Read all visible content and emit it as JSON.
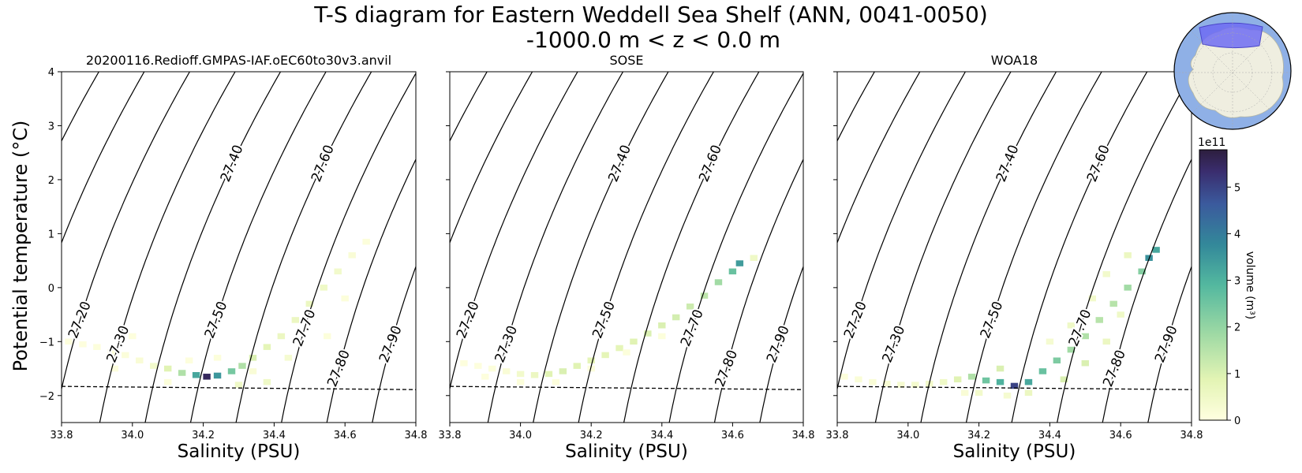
{
  "figure": {
    "title_line1": "T-S diagram for Eastern Weddell Sea Shelf (ANN, 0041-0050)",
    "title_line2": "-1000.0 m < z < 0.0 m",
    "ylabel": "Potential temperature (°C)",
    "colorbar_label": "volume (m³)",
    "colorbar_exponent": "1e11"
  },
  "chart_data": [
    {
      "type": "heatmap",
      "title": "20200116.Redioff.GMPAS-IAF.oEC60to30v3.anvil",
      "xlabel": "Salinity (PSU)",
      "ylabel": "Potential temperature (°C)",
      "xlim": [
        33.8,
        34.8
      ],
      "ylim": [
        -2.5,
        4
      ],
      "x_ticks": [
        "33.8",
        "34.0",
        "34.2",
        "34.4",
        "34.6",
        "34.8"
      ],
      "y_ticks": [
        "−2",
        "−1",
        "0",
        "1",
        "2",
        "3",
        "4"
      ],
      "freezing_line": [
        [
          33.8,
          -1.83
        ],
        [
          34.8,
          -1.89
        ]
      ],
      "density_contours": [
        "27.00",
        "27.10",
        "27.20",
        "27.30",
        "27.40",
        "27.50",
        "27.60",
        "27.70",
        "27.80",
        "27.90",
        "28.00"
      ],
      "volume_cells": [
        [
          33.82,
          -1.0,
          0.05
        ],
        [
          33.86,
          -1.05,
          0.05
        ],
        [
          33.9,
          -1.1,
          0.08
        ],
        [
          33.94,
          -1.2,
          0.1
        ],
        [
          33.98,
          -1.25,
          0.12
        ],
        [
          34.02,
          -1.35,
          0.2
        ],
        [
          34.06,
          -1.45,
          0.4
        ],
        [
          34.1,
          -1.5,
          0.9
        ],
        [
          34.14,
          -1.58,
          1.6
        ],
        [
          34.18,
          -1.62,
          3.2
        ],
        [
          34.21,
          -1.65,
          5.5
        ],
        [
          34.24,
          -1.63,
          3.5
        ],
        [
          34.28,
          -1.55,
          2.4
        ],
        [
          34.31,
          -1.45,
          1.6
        ],
        [
          34.34,
          -1.3,
          1.0
        ],
        [
          34.38,
          -1.1,
          0.8
        ],
        [
          34.42,
          -0.9,
          0.6
        ],
        [
          34.46,
          -0.6,
          0.6
        ],
        [
          34.5,
          -0.3,
          0.6
        ],
        [
          34.54,
          0.0,
          0.5
        ],
        [
          34.58,
          0.3,
          0.4
        ],
        [
          34.62,
          0.6,
          0.2
        ],
        [
          34.66,
          0.85,
          0.1
        ],
        [
          34.3,
          -1.8,
          0.5
        ],
        [
          34.38,
          -1.75,
          0.5
        ],
        [
          34.1,
          -1.75,
          0.1
        ],
        [
          33.95,
          -1.5,
          0.05
        ],
        [
          34.0,
          -0.9,
          0.05
        ],
        [
          34.16,
          -1.35,
          0.05
        ],
        [
          34.24,
          -1.3,
          0.1
        ],
        [
          34.34,
          -1.55,
          0.2
        ],
        [
          34.44,
          -1.3,
          0.3
        ],
        [
          34.55,
          -0.9,
          0.1
        ],
        [
          34.6,
          -0.2,
          0.1
        ]
      ]
    },
    {
      "type": "heatmap",
      "title": "SOSE",
      "xlabel": "Salinity (PSU)",
      "xlim": [
        33.8,
        34.8
      ],
      "ylim": [
        -2.5,
        4
      ],
      "x_ticks": [
        "33.8",
        "34.0",
        "34.2",
        "34.4",
        "34.6",
        "34.8"
      ],
      "freezing_line": [
        [
          33.8,
          -1.83
        ],
        [
          34.8,
          -1.89
        ]
      ],
      "density_contours": [
        "27.00",
        "27.10",
        "27.20",
        "27.30",
        "27.40",
        "27.50",
        "27.60",
        "27.70",
        "27.80",
        "27.90",
        "28.00"
      ],
      "volume_cells": [
        [
          33.84,
          -1.4,
          0.05
        ],
        [
          33.88,
          -1.45,
          0.05
        ],
        [
          33.92,
          -1.5,
          0.1
        ],
        [
          33.96,
          -1.55,
          0.2
        ],
        [
          34.0,
          -1.6,
          0.4
        ],
        [
          34.04,
          -1.62,
          0.6
        ],
        [
          34.08,
          -1.6,
          0.9
        ],
        [
          34.12,
          -1.55,
          1.0
        ],
        [
          34.16,
          -1.45,
          0.9
        ],
        [
          34.2,
          -1.35,
          0.8
        ],
        [
          34.24,
          -1.25,
          0.8
        ],
        [
          34.28,
          -1.12,
          0.8
        ],
        [
          34.32,
          -1.0,
          0.9
        ],
        [
          34.36,
          -0.85,
          1.0
        ],
        [
          34.4,
          -0.7,
          1.0
        ],
        [
          34.44,
          -0.55,
          1.1
        ],
        [
          34.48,
          -0.35,
          1.2
        ],
        [
          34.52,
          -0.15,
          1.4
        ],
        [
          34.56,
          0.1,
          1.8
        ],
        [
          34.6,
          0.3,
          2.6
        ],
        [
          34.62,
          0.45,
          3.4
        ],
        [
          34.66,
          0.55,
          0.5
        ],
        [
          33.9,
          -1.65,
          0.05
        ],
        [
          34.0,
          -1.75,
          0.1
        ],
        [
          34.1,
          -1.75,
          0.05
        ],
        [
          34.2,
          -1.5,
          0.1
        ],
        [
          34.3,
          -1.2,
          0.1
        ],
        [
          34.4,
          -0.9,
          0.1
        ]
      ]
    },
    {
      "type": "heatmap",
      "title": "WOA18",
      "xlabel": "Salinity (PSU)",
      "xlim": [
        33.8,
        34.8
      ],
      "ylim": [
        -2.5,
        4
      ],
      "x_ticks": [
        "33.8",
        "34.0",
        "34.2",
        "34.4",
        "34.6",
        "34.8"
      ],
      "freezing_line": [
        [
          33.8,
          -1.83
        ],
        [
          34.8,
          -1.89
        ]
      ],
      "density_contours": [
        "27.00",
        "27.10",
        "27.20",
        "27.30",
        "27.40",
        "27.50",
        "27.60",
        "27.70",
        "27.80",
        "27.90",
        "28.00"
      ],
      "volume_cells": [
        [
          33.82,
          -1.65,
          0.1
        ],
        [
          33.86,
          -1.7,
          0.15
        ],
        [
          33.9,
          -1.75,
          0.2
        ],
        [
          33.94,
          -1.78,
          0.25
        ],
        [
          33.98,
          -1.8,
          0.3
        ],
        [
          34.02,
          -1.8,
          0.35
        ],
        [
          34.06,
          -1.78,
          0.4
        ],
        [
          34.1,
          -1.75,
          0.5
        ],
        [
          34.14,
          -1.7,
          0.9
        ],
        [
          34.18,
          -1.65,
          1.6
        ],
        [
          34.22,
          -1.72,
          2.5
        ],
        [
          34.26,
          -1.75,
          3.0
        ],
        [
          34.3,
          -1.82,
          5.0
        ],
        [
          34.34,
          -1.75,
          3.2
        ],
        [
          34.38,
          -1.55,
          2.6
        ],
        [
          34.42,
          -1.35,
          2.3
        ],
        [
          34.46,
          -1.15,
          1.8
        ],
        [
          34.5,
          -0.9,
          1.6
        ],
        [
          34.54,
          -0.6,
          1.5
        ],
        [
          34.58,
          -0.3,
          1.5
        ],
        [
          34.62,
          0.0,
          1.8
        ],
        [
          34.66,
          0.3,
          2.2
        ],
        [
          34.68,
          0.55,
          3.6
        ],
        [
          34.7,
          0.7,
          3.2
        ],
        [
          34.62,
          0.6,
          0.6
        ],
        [
          34.26,
          -1.5,
          1.0
        ],
        [
          34.2,
          -1.95,
          0.4
        ],
        [
          34.34,
          -1.95,
          0.6
        ],
        [
          34.44,
          -1.7,
          1.0
        ],
        [
          34.5,
          -1.4,
          1.0
        ],
        [
          34.56,
          -1.0,
          0.6
        ],
        [
          34.6,
          -0.5,
          0.5
        ],
        [
          34.46,
          -0.7,
          0.5
        ],
        [
          34.52,
          -0.2,
          0.4
        ],
        [
          34.56,
          0.25,
          0.4
        ],
        [
          34.4,
          -1.0,
          0.3
        ],
        [
          34.16,
          -1.95,
          0.2
        ],
        [
          34.28,
          -2.0,
          0.3
        ]
      ]
    }
  ],
  "colorbar": {
    "range": [
      0,
      5.8
    ],
    "ticks": [
      "0",
      "1",
      "2",
      "3",
      "4",
      "5"
    ]
  },
  "colors": {
    "map_ocean": "#8fb0e6",
    "map_land": "#efeee0",
    "map_region": "#6f6cf2"
  }
}
